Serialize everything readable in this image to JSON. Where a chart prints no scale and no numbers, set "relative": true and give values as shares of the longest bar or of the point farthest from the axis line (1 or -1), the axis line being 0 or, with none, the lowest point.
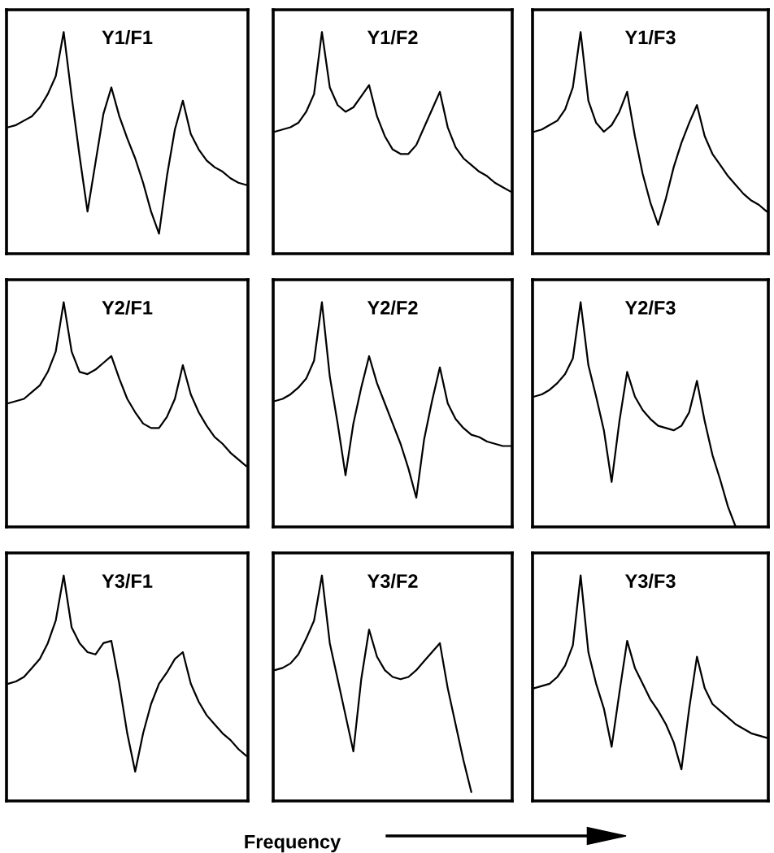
{
  "chart_data": [
    {
      "type": "line",
      "title": "Y1/F1",
      "relative": true,
      "color": "#000000",
      "categories": [
        null,
        null,
        null,
        null,
        null,
        null,
        null,
        null,
        null,
        null,
        null,
        null,
        null,
        null,
        null,
        null,
        null,
        null,
        null,
        null,
        null,
        null,
        null,
        null,
        null,
        null,
        null,
        null,
        null,
        null,
        null
      ],
      "values": [
        0.57,
        0.58,
        0.6,
        0.62,
        0.66,
        0.72,
        0.8,
        1.0,
        0.71,
        0.44,
        0.19,
        0.41,
        0.63,
        0.75,
        0.62,
        0.52,
        0.43,
        0.32,
        0.19,
        0.09,
        0.35,
        0.56,
        0.69,
        0.54,
        0.47,
        0.42,
        0.39,
        0.37,
        0.34,
        0.32,
        0.31
      ]
    },
    {
      "type": "line",
      "title": "Y1/F2",
      "relative": true,
      "color": "#000000",
      "categories": [
        null,
        null,
        null,
        null,
        null,
        null,
        null,
        null,
        null,
        null,
        null,
        null,
        null,
        null,
        null,
        null,
        null,
        null,
        null,
        null,
        null,
        null,
        null,
        null,
        null,
        null,
        null,
        null,
        null,
        null,
        null
      ],
      "values": [
        0.55,
        0.56,
        0.57,
        0.59,
        0.64,
        0.72,
        1.0,
        0.75,
        0.67,
        0.64,
        0.66,
        0.71,
        0.76,
        0.62,
        0.53,
        0.47,
        0.45,
        0.45,
        0.49,
        0.57,
        0.65,
        0.73,
        0.57,
        0.48,
        0.43,
        0.4,
        0.37,
        0.35,
        0.32,
        0.3,
        0.28
      ]
    },
    {
      "type": "line",
      "title": "Y1/F3",
      "relative": true,
      "color": "#000000",
      "categories": [
        null,
        null,
        null,
        null,
        null,
        null,
        null,
        null,
        null,
        null,
        null,
        null,
        null,
        null,
        null,
        null,
        null,
        null,
        null,
        null,
        null,
        null,
        null,
        null,
        null,
        null,
        null,
        null,
        null,
        null,
        null
      ],
      "values": [
        0.55,
        0.56,
        0.58,
        0.6,
        0.65,
        0.75,
        1.0,
        0.69,
        0.59,
        0.55,
        0.58,
        0.64,
        0.73,
        0.53,
        0.36,
        0.23,
        0.13,
        0.25,
        0.39,
        0.5,
        0.59,
        0.67,
        0.53,
        0.45,
        0.4,
        0.35,
        0.31,
        0.27,
        0.24,
        0.22,
        0.19
      ]
    },
    {
      "type": "line",
      "title": "Y2/F1",
      "relative": true,
      "color": "#000000",
      "categories": [
        null,
        null,
        null,
        null,
        null,
        null,
        null,
        null,
        null,
        null,
        null,
        null,
        null,
        null,
        null,
        null,
        null,
        null,
        null,
        null,
        null,
        null,
        null,
        null,
        null,
        null,
        null,
        null,
        null,
        null,
        null
      ],
      "values": [
        0.55,
        0.56,
        0.57,
        0.6,
        0.63,
        0.69,
        0.78,
        1.0,
        0.78,
        0.69,
        0.68,
        0.7,
        0.73,
        0.76,
        0.66,
        0.57,
        0.51,
        0.46,
        0.44,
        0.44,
        0.49,
        0.57,
        0.72,
        0.59,
        0.51,
        0.45,
        0.4,
        0.37,
        0.33,
        0.3,
        0.27
      ]
    },
    {
      "type": "line",
      "title": "Y2/F2",
      "relative": true,
      "color": "#000000",
      "categories": [
        null,
        null,
        null,
        null,
        null,
        null,
        null,
        null,
        null,
        null,
        null,
        null,
        null,
        null,
        null,
        null,
        null,
        null,
        null,
        null,
        null,
        null,
        null,
        null,
        null,
        null,
        null,
        null,
        null,
        null,
        null
      ],
      "values": [
        0.56,
        0.57,
        0.59,
        0.62,
        0.66,
        0.74,
        1.0,
        0.67,
        0.46,
        0.23,
        0.46,
        0.62,
        0.76,
        0.64,
        0.55,
        0.46,
        0.37,
        0.26,
        0.13,
        0.39,
        0.56,
        0.71,
        0.55,
        0.48,
        0.44,
        0.41,
        0.4,
        0.38,
        0.37,
        0.36,
        0.36
      ]
    },
    {
      "type": "line",
      "title": "Y2/F3",
      "relative": true,
      "color": "#000000",
      "categories": [
        null,
        null,
        null,
        null,
        null,
        null,
        null,
        null,
        null,
        null,
        null,
        null,
        null,
        null,
        null,
        null,
        null,
        null,
        null,
        null,
        null,
        null,
        null,
        null,
        null,
        null,
        null,
        null,
        null,
        null,
        null
      ],
      "values": [
        0.58,
        0.59,
        0.61,
        0.64,
        0.68,
        0.75,
        1.0,
        0.72,
        0.58,
        0.43,
        0.2,
        0.47,
        0.69,
        0.58,
        0.52,
        0.48,
        0.45,
        0.44,
        0.43,
        0.45,
        0.51,
        0.65,
        0.47,
        0.32,
        0.21,
        0.09,
        0,
        null,
        null,
        null,
        null
      ]
    },
    {
      "type": "line",
      "title": "Y3/F1",
      "relative": true,
      "color": "#000000",
      "categories": [
        null,
        null,
        null,
        null,
        null,
        null,
        null,
        null,
        null,
        null,
        null,
        null,
        null,
        null,
        null,
        null,
        null,
        null,
        null,
        null,
        null,
        null,
        null,
        null,
        null,
        null,
        null,
        null,
        null,
        null,
        null
      ],
      "values": [
        0.52,
        0.53,
        0.55,
        0.59,
        0.63,
        0.7,
        0.8,
        1.0,
        0.77,
        0.7,
        0.66,
        0.65,
        0.7,
        0.71,
        0.52,
        0.3,
        0.13,
        0.3,
        0.43,
        0.52,
        0.57,
        0.63,
        0.66,
        0.52,
        0.44,
        0.38,
        0.34,
        0.3,
        0.27,
        0.23,
        0.2
      ]
    },
    {
      "type": "line",
      "title": "Y3/F2",
      "xlabel": "Frequency",
      "relative": true,
      "color": "#000000",
      "categories": [
        null,
        null,
        null,
        null,
        null,
        null,
        null,
        null,
        null,
        null,
        null,
        null,
        null,
        null,
        null,
        null,
        null,
        null,
        null,
        null,
        null,
        null,
        null,
        null,
        null,
        null,
        null,
        null,
        null,
        null,
        null
      ],
      "values": [
        0.58,
        0.59,
        0.61,
        0.65,
        0.72,
        0.8,
        1.0,
        0.7,
        0.54,
        0.38,
        0.22,
        0.54,
        0.76,
        0.64,
        0.58,
        0.55,
        0.54,
        0.55,
        0.58,
        0.62,
        0.66,
        0.7,
        0.5,
        0.34,
        0.18,
        0.04,
        null,
        null,
        null,
        null,
        null
      ]
    },
    {
      "type": "line",
      "title": "Y3/F3",
      "relative": true,
      "color": "#000000",
      "categories": [
        null,
        null,
        null,
        null,
        null,
        null,
        null,
        null,
        null,
        null,
        null,
        null,
        null,
        null,
        null,
        null,
        null,
        null,
        null,
        null,
        null,
        null,
        null,
        null,
        null,
        null,
        null,
        null,
        null,
        null,
        null
      ],
      "values": [
        0.5,
        0.51,
        0.52,
        0.55,
        0.6,
        0.69,
        1.0,
        0.66,
        0.52,
        0.41,
        0.24,
        0.48,
        0.71,
        0.59,
        0.52,
        0.45,
        0.4,
        0.34,
        0.26,
        0.14,
        0.41,
        0.64,
        0.5,
        0.43,
        0.4,
        0.37,
        0.34,
        0.32,
        0.3,
        0.29,
        0.28
      ]
    }
  ]
}
